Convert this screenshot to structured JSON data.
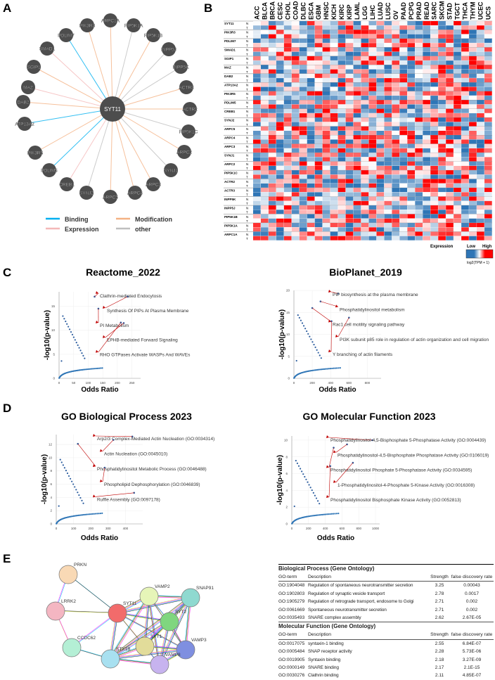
{
  "panels": {
    "a": "A",
    "b": "B",
    "c": "C",
    "d": "D",
    "e": "E"
  },
  "network_a": {
    "center": "SYT11",
    "nodes": [
      {
        "id": "PIK3R3",
        "type": "Modification"
      },
      {
        "id": "ARPC1A",
        "type": "Modification"
      },
      {
        "id": "PIP5K1A",
        "type": "other"
      },
      {
        "id": "PDLIM7",
        "type": "Binding"
      },
      {
        "id": "PIP5K1B",
        "type": "Modification"
      },
      {
        "id": "SMAD1",
        "type": "Expression"
      },
      {
        "id": "INPP5J",
        "type": "other"
      },
      {
        "id": "SGIP1",
        "type": "Modification"
      },
      {
        "id": "INPP5K",
        "type": "other"
      },
      {
        "id": "MAZ",
        "type": "Expression"
      },
      {
        "id": "ACTR3",
        "type": "Modification"
      },
      {
        "id": "DAB2",
        "type": "Modification"
      },
      {
        "id": "ACTR2",
        "type": "Modification"
      },
      {
        "id": "ATP13A2",
        "type": "Binding"
      },
      {
        "id": "PIP5K1C",
        "type": "other"
      },
      {
        "id": "PIK3R5",
        "type": "Modification"
      },
      {
        "id": "ARPC2",
        "type": "Modification"
      },
      {
        "id": "PDLIM5",
        "type": "Binding"
      },
      {
        "id": "SYNJ1",
        "type": "other"
      },
      {
        "id": "CREB1",
        "type": "Expression"
      },
      {
        "id": "ARPC3",
        "type": "Modification"
      },
      {
        "id": "SYNJ2",
        "type": "other"
      },
      {
        "id": "ARPC5",
        "type": "Modification"
      },
      {
        "id": "ARPC4",
        "type": "Modification"
      }
    ],
    "legend": [
      {
        "label": "Binding",
        "color": "#00b0f0"
      },
      {
        "label": "Modification",
        "color": "#f4b183"
      },
      {
        "label": "Expression",
        "color": "#f4b8b8"
      },
      {
        "label": "other",
        "color": "#bfbfbf"
      }
    ]
  },
  "heatmap_b": {
    "columns": [
      "ACC",
      "BLCA",
      "BRCA",
      "CESC",
      "CHOL",
      "COAD",
      "DLBC",
      "ESCA",
      "GBM",
      "HNSC",
      "KICH",
      "KIRC",
      "KIRP",
      "LAML",
      "LGG",
      "LIHC",
      "LUAD",
      "LUSC",
      "OV",
      "PAAD",
      "PCPG",
      "PRAD",
      "READ",
      "SARC",
      "SKCM",
      "STAD",
      "TGCT",
      "THCA",
      "THYM",
      "UCEC",
      "UCS"
    ],
    "genes": [
      "SYT11",
      "PIK3R3",
      "PDLIM7",
      "SMAD1",
      "SGIP1",
      "MAZ",
      "DAB2",
      "ATP13A2",
      "PIK3R5",
      "PDLIM5",
      "CREB1",
      "SYNJ2",
      "ARPC5",
      "ARPC4",
      "ARPC3",
      "SYNJ1",
      "ARPC2",
      "PIP5K1C",
      "ACTR2",
      "ACTR3",
      "INPP5K",
      "INPP5J",
      "PIP5K1B",
      "PIP5K1A",
      "ARPC1A"
    ],
    "row_types": [
      "N",
      "T"
    ],
    "legend": {
      "title": "Expression",
      "low": "Low",
      "high": "High",
      "unit": "log2(TPM + 1)",
      "low_color": "#2e75b6",
      "mid_color": "#ffffff",
      "high_color": "#ff0000"
    }
  },
  "chart_data": [
    {
      "type": "scatter",
      "title": "Reactome_2022",
      "xlabel": "Odds Ratio",
      "ylabel": "-log10(p-value)",
      "xlim": [
        0,
        280
      ],
      "ylim": [
        0,
        18
      ],
      "xticks": [
        0,
        50,
        100,
        150,
        200,
        250
      ],
      "yticks": [
        0,
        5,
        10,
        15
      ],
      "annotations": [
        {
          "text": "Clathrin-mediated Endocytosis",
          "x": 122,
          "y": 17
        },
        {
          "text": "Synthesis Of PIPs At Plasma Membrane",
          "x": 235,
          "y": 17
        },
        {
          "text": "PI Metabolism",
          "x": 135,
          "y": 14.5
        },
        {
          "text": "EPHB-mediated Forward Signaling",
          "x": 222,
          "y": 11.5
        },
        {
          "text": "RHO GTPases Activate WASPs And WAVEs",
          "x": 212,
          "y": 11.6
        }
      ]
    },
    {
      "type": "scatter",
      "title": "BioPlanet_2019",
      "xlabel": "Odds Ratio",
      "ylabel": "-log10(p-value)",
      "xlim": [
        0,
        950
      ],
      "ylim": [
        0,
        20
      ],
      "xticks": [
        0,
        200,
        400,
        600,
        800
      ],
      "yticks": [
        0,
        5,
        10,
        15,
        20
      ],
      "annotations": [
        {
          "text": "PIP biosynthesis at the plasma membrane",
          "x": 480,
          "y": 19.3
        },
        {
          "text": "Phosphatidylinositol metabolism",
          "x": 290,
          "y": 17.5
        },
        {
          "text": "Rac1 cell motility signaling pathway",
          "x": 200,
          "y": 16
        },
        {
          "text": "PI3K subunit p85 role in regulation of actin organization and cell migration",
          "x": 600,
          "y": 13.8
        },
        {
          "text": "Y branching of actin filaments",
          "x": 410,
          "y": 13
        }
      ]
    },
    {
      "type": "scatter",
      "title": "GO Biological Process 2023",
      "xlabel": "Odds Ratio",
      "ylabel": "-log10(p-value)",
      "xlim": [
        0,
        500
      ],
      "ylim": [
        0,
        13.5
      ],
      "xticks": [
        0,
        100,
        200,
        300,
        400
      ],
      "yticks": [
        0,
        2,
        4,
        6,
        8,
        10,
        12
      ],
      "annotations": [
        {
          "text": "Arp2/3 Complex-Mediated Actin Nucleation (GO:0034314)",
          "x": 440,
          "y": 13.2
        },
        {
          "text": "Actin Nucleation (GO:0045010)",
          "x": 330,
          "y": 12.7
        },
        {
          "text": "Phosphatidylinositol Metabolic Process (GO:0046488)",
          "x": 125,
          "y": 12.1
        },
        {
          "text": "Phospholipid Dephosphorylation (GO:0046839)",
          "x": 280,
          "y": 8.5
        },
        {
          "text": "Ruffle Assembly (GO:0097178)",
          "x": 450,
          "y": 4.7
        }
      ]
    },
    {
      "type": "scatter",
      "title": "GO Molecular Function 2023",
      "xlabel": "Odds Ratio",
      "ylabel": "-log10(p-value)",
      "xlim": [
        0,
        1050
      ],
      "ylim": [
        0,
        10.5
      ],
      "xticks": [
        0,
        200,
        400,
        600,
        800,
        1000
      ],
      "yticks": [
        0,
        2,
        4,
        6,
        8,
        10
      ],
      "annotations": [
        {
          "text": "Phosphatidylinositol-4,5-Bisphosphate 5-Phosphatase Activity (GO:0004439)",
          "x": 960,
          "y": 10
        },
        {
          "text": "Phosphatidylinositol-4,5-Bisphosphate Phosphatase Activity (GO:0106019)",
          "x": 660,
          "y": 9.5
        },
        {
          "text": "Phosphatidylinositol Phosphate 5-Phosphatase Activity (GO:0034595)",
          "x": 500,
          "y": 9.1
        },
        {
          "text": "1-Phosphatidylinositol-4-Phosphate 5-Kinase Activity (GO:0016308)",
          "x": 730,
          "y": 7.3
        },
        {
          "text": "Phosphatidylinositol Bisphosphate Kinase Activity (GO:0052813)",
          "x": 460,
          "y": 6.9
        }
      ]
    }
  ],
  "string_network_e": {
    "nodes": [
      {
        "id": "PRKN",
        "color": "#f9d9b5"
      },
      {
        "id": "LRRK2",
        "color": "#f4b6c2"
      },
      {
        "id": "SYT11",
        "color": "#f26b6b"
      },
      {
        "id": "VAMP2",
        "color": "#e6f5b8"
      },
      {
        "id": "SNAP91",
        "color": "#8fd9d0"
      },
      {
        "id": "SYT2",
        "color": "#7fd67f"
      },
      {
        "id": "CCDC62",
        "color": "#b4efd5"
      },
      {
        "id": "SYT1",
        "color": "#e2dc9a"
      },
      {
        "id": "VAMP3",
        "color": "#7f8fe0"
      },
      {
        "id": "STX1B",
        "color": "#a8e0f0"
      },
      {
        "id": "VAMP8",
        "color": "#c7b3ef"
      }
    ]
  },
  "table_e": {
    "bp_title": "Biological Process (Gene Ontology)",
    "mf_title": "Molecular Function (Gene Ontology)",
    "columns": [
      "GO-term",
      "Description",
      "Strength",
      "false discovery rate"
    ],
    "bp_rows": [
      [
        "GO:1904048",
        "Regulation of spontaneous neurotransmitter secretion",
        "3.25",
        "0.00043"
      ],
      [
        "GO:1902803",
        "Regulation of synaptic vesicle transport",
        "2.78",
        "0.0017"
      ],
      [
        "GO:1905279",
        "Regulation of retrograde transport, endosome to Golgi",
        "2.71",
        "0.002"
      ],
      [
        "GO:0061669",
        "Spontaneous neurotransmitter secretion",
        "2.71",
        "0.002"
      ],
      [
        "GO:0035493",
        "SNARE complex assembly",
        "2.62",
        "2.67E-05"
      ]
    ],
    "mf_rows": [
      [
        "GO:0017075",
        "syntaxin-1 binding",
        "2.55",
        "6.84E-07"
      ],
      [
        "GO:0005484",
        "SNAP receptor activity",
        "2.28",
        "5.73E-06"
      ],
      [
        "GO:0019905",
        "Syntaxin binding",
        "2.18",
        "3.27E-09"
      ],
      [
        "GO:0000149",
        "SNARE binding",
        "2.17",
        "2.1E-15"
      ],
      [
        "GO:0030276",
        "Clathrin binding",
        "2.11",
        "4.85E-07"
      ]
    ]
  }
}
